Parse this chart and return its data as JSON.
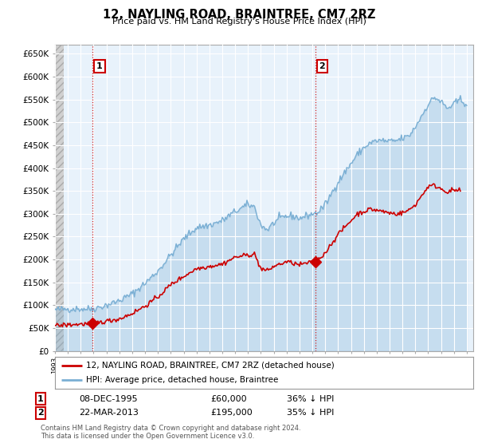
{
  "title": "12, NAYLING ROAD, BRAINTREE, CM7 2RZ",
  "subtitle": "Price paid vs. HM Land Registry's House Price Index (HPI)",
  "ylabel_ticks": [
    "£0",
    "£50K",
    "£100K",
    "£150K",
    "£200K",
    "£250K",
    "£300K",
    "£350K",
    "£400K",
    "£450K",
    "£500K",
    "£550K",
    "£600K",
    "£650K"
  ],
  "ytick_values": [
    0,
    50000,
    100000,
    150000,
    200000,
    250000,
    300000,
    350000,
    400000,
    450000,
    500000,
    550000,
    600000,
    650000
  ],
  "ylim": [
    0,
    670000
  ],
  "xlim_start": 1993.0,
  "xlim_end": 2025.5,
  "hpi_color": "#7aafd4",
  "hpi_fill_color": "#daeaf5",
  "price_color": "#cc0000",
  "marker1_x": 1995.92,
  "marker1_y": 60000,
  "marker2_x": 2013.22,
  "marker2_y": 195000,
  "vline1_x": 1995.92,
  "vline2_x": 2013.22,
  "legend_line1": "12, NAYLING ROAD, BRAINTREE, CM7 2RZ (detached house)",
  "legend_line2": "HPI: Average price, detached house, Braintree",
  "annotation1_label": "1",
  "annotation2_label": "2",
  "table_row1": [
    "1",
    "08-DEC-1995",
    "£60,000",
    "36% ↓ HPI"
  ],
  "table_row2": [
    "2",
    "22-MAR-2013",
    "£195,000",
    "35% ↓ HPI"
  ],
  "footer": "Contains HM Land Registry data © Crown copyright and database right 2024.\nThis data is licensed under the Open Government Licence v3.0.",
  "bg_color": "#ffffff",
  "plot_bg_color": "#e8f2fb",
  "grid_color": "#ffffff",
  "hatch_color": "#c8c8c8"
}
